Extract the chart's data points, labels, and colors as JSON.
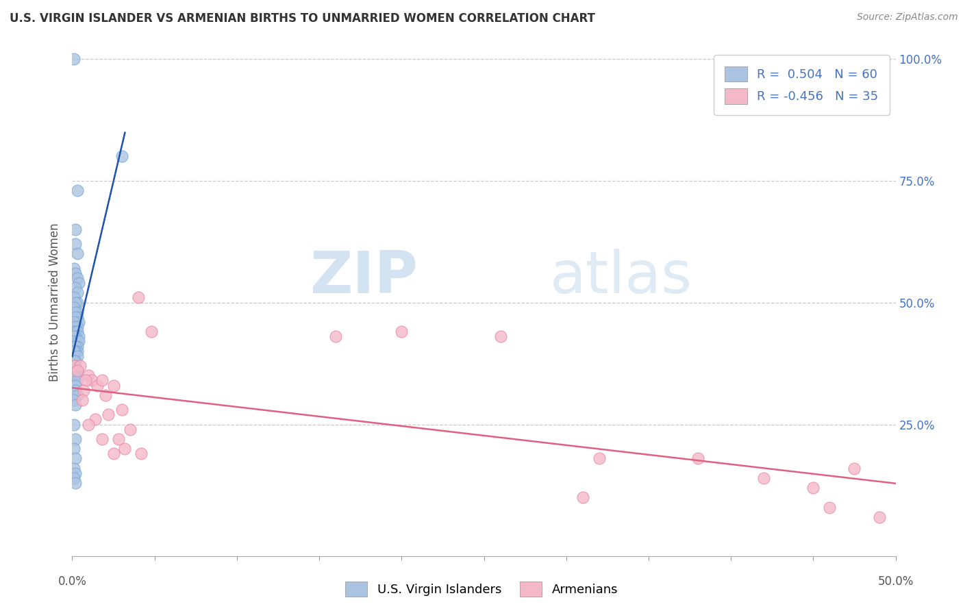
{
  "title": "U.S. VIRGIN ISLANDER VS ARMENIAN BIRTHS TO UNMARRIED WOMEN CORRELATION CHART",
  "source": "Source: ZipAtlas.com",
  "ylabel": "Births to Unmarried Women",
  "xmin": 0.0,
  "xmax": 0.5,
  "ymin": -0.02,
  "ymax": 1.02,
  "ytick_vals": [
    0.25,
    0.5,
    0.75,
    1.0
  ],
  "ytick_labels": [
    "25.0%",
    "50.0%",
    "75.0%",
    "100.0%"
  ],
  "watermark_zip": "ZIP",
  "watermark_atlas": "atlas",
  "legend_R1": "0.504",
  "legend_N1": "60",
  "legend_R2": "-0.456",
  "legend_N2": "35",
  "blue_color": "#aac4e2",
  "blue_edge_color": "#7aa8d8",
  "blue_line_color": "#2255aa",
  "pink_color": "#f5b8c8",
  "pink_edge_color": "#e888a8",
  "pink_line_color": "#e06080",
  "blue_scatter": [
    [
      0.001,
      1.0
    ],
    [
      0.03,
      0.8
    ],
    [
      0.003,
      0.73
    ],
    [
      0.002,
      0.65
    ],
    [
      0.002,
      0.62
    ],
    [
      0.003,
      0.6
    ],
    [
      0.001,
      0.57
    ],
    [
      0.002,
      0.56
    ],
    [
      0.003,
      0.55
    ],
    [
      0.004,
      0.54
    ],
    [
      0.002,
      0.53
    ],
    [
      0.003,
      0.52
    ],
    [
      0.001,
      0.51
    ],
    [
      0.003,
      0.5
    ],
    [
      0.002,
      0.5
    ],
    [
      0.001,
      0.49
    ],
    [
      0.003,
      0.48
    ],
    [
      0.002,
      0.48
    ],
    [
      0.003,
      0.47
    ],
    [
      0.002,
      0.47
    ],
    [
      0.004,
      0.46
    ],
    [
      0.001,
      0.46
    ],
    [
      0.003,
      0.45
    ],
    [
      0.002,
      0.45
    ],
    [
      0.001,
      0.44
    ],
    [
      0.002,
      0.44
    ],
    [
      0.003,
      0.44
    ],
    [
      0.004,
      0.43
    ],
    [
      0.002,
      0.43
    ],
    [
      0.001,
      0.43
    ],
    [
      0.003,
      0.42
    ],
    [
      0.002,
      0.42
    ],
    [
      0.004,
      0.42
    ],
    [
      0.001,
      0.41
    ],
    [
      0.003,
      0.41
    ],
    [
      0.002,
      0.41
    ],
    [
      0.003,
      0.4
    ],
    [
      0.002,
      0.4
    ],
    [
      0.001,
      0.4
    ],
    [
      0.003,
      0.39
    ],
    [
      0.002,
      0.38
    ],
    [
      0.001,
      0.38
    ],
    [
      0.002,
      0.37
    ],
    [
      0.003,
      0.36
    ],
    [
      0.002,
      0.35
    ],
    [
      0.001,
      0.35
    ],
    [
      0.003,
      0.34
    ],
    [
      0.002,
      0.33
    ],
    [
      0.002,
      0.32
    ],
    [
      0.003,
      0.31
    ],
    [
      0.001,
      0.3
    ],
    [
      0.002,
      0.29
    ],
    [
      0.001,
      0.25
    ],
    [
      0.002,
      0.22
    ],
    [
      0.001,
      0.2
    ],
    [
      0.002,
      0.18
    ],
    [
      0.001,
      0.16
    ],
    [
      0.002,
      0.15
    ],
    [
      0.001,
      0.14
    ],
    [
      0.002,
      0.13
    ]
  ],
  "pink_scatter": [
    [
      0.001,
      0.37
    ],
    [
      0.005,
      0.37
    ],
    [
      0.003,
      0.36
    ],
    [
      0.01,
      0.35
    ],
    [
      0.012,
      0.34
    ],
    [
      0.008,
      0.34
    ],
    [
      0.015,
      0.33
    ],
    [
      0.018,
      0.34
    ],
    [
      0.007,
      0.32
    ],
    [
      0.02,
      0.31
    ],
    [
      0.025,
      0.33
    ],
    [
      0.006,
      0.3
    ],
    [
      0.03,
      0.28
    ],
    [
      0.022,
      0.27
    ],
    [
      0.014,
      0.26
    ],
    [
      0.01,
      0.25
    ],
    [
      0.04,
      0.51
    ],
    [
      0.035,
      0.24
    ],
    [
      0.028,
      0.22
    ],
    [
      0.018,
      0.22
    ],
    [
      0.048,
      0.44
    ],
    [
      0.032,
      0.2
    ],
    [
      0.025,
      0.19
    ],
    [
      0.042,
      0.19
    ],
    [
      0.2,
      0.44
    ],
    [
      0.16,
      0.43
    ],
    [
      0.26,
      0.43
    ],
    [
      0.32,
      0.18
    ],
    [
      0.38,
      0.18
    ],
    [
      0.31,
      0.1
    ],
    [
      0.42,
      0.14
    ],
    [
      0.45,
      0.12
    ],
    [
      0.46,
      0.08
    ],
    [
      0.475,
      0.16
    ],
    [
      0.49,
      0.06
    ]
  ],
  "background_color": "#ffffff",
  "grid_color": "#c8c8c8",
  "title_color": "#333333",
  "axis_color": "#555555",
  "label_color": "#4472c4",
  "source_color": "#888888"
}
